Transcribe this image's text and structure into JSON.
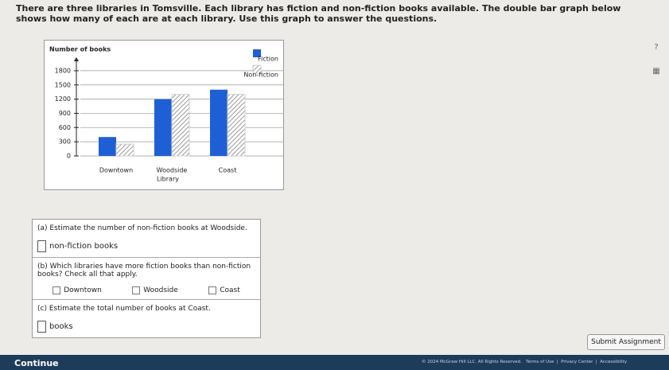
{
  "header": {
    "text": "There are three libraries in Tomsville. Each library has fiction and non-fiction books available. The double bar graph below shows how many of each are at each library. Use this graph to answer the questions."
  },
  "chart_data": {
    "type": "bar",
    "ylabel": "Number of books",
    "xlabel": "Library",
    "categories": [
      "Downtown",
      "Woodside",
      "Coast"
    ],
    "series": [
      {
        "name": "Fiction",
        "color": "#1f5fd6",
        "hatch": false,
        "values": [
          400,
          1200,
          1400
        ]
      },
      {
        "name": "Non-fiction",
        "color": "#cfcfcf",
        "hatch": true,
        "values": [
          250,
          1300,
          1300
        ]
      }
    ],
    "ylim": [
      0,
      2000
    ],
    "yticks": [
      0,
      300,
      600,
      900,
      1200,
      1500,
      1800
    ],
    "grid": true,
    "legend": "upper right"
  },
  "questions": [
    {
      "label": "(a) Estimate the number of non-fiction books at Woodside.",
      "unit": "non-fiction books"
    },
    {
      "label": "(b) Which libraries have more fiction books than non-fiction books? Check all that apply.",
      "options": [
        "Downtown",
        "Woodside",
        "Coast"
      ]
    },
    {
      "label": "(c) Estimate the total number of books at Coast.",
      "unit": "books"
    }
  ],
  "buttons": {
    "submit": "Submit Assignment",
    "continue": "Continue"
  },
  "footer": "© 2024 McGraw Hill LLC. All Rights Reserved.   Terms of Use  |  Privacy Center  |  Accessibility"
}
